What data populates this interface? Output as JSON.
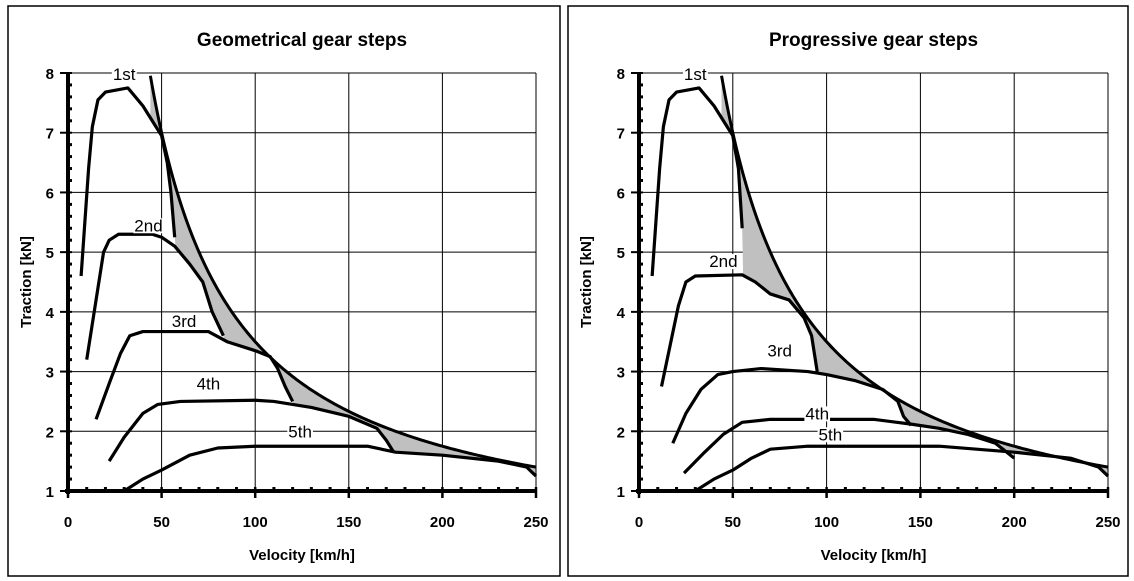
{
  "chart_data": [
    {
      "type": "line",
      "title": "Geometrical gear steps",
      "xlabel": "Velocity [km/h]",
      "ylabel": "Traction [kN]",
      "xlim": [
        0,
        250
      ],
      "ylim": [
        1,
        8
      ],
      "xticks": [
        "0",
        "50",
        "100",
        "150",
        "200",
        "250"
      ],
      "yticks": [
        "1",
        "2",
        "3",
        "4",
        "5",
        "6",
        "7",
        "8"
      ],
      "grid": true,
      "ideal_traction_curve": {
        "constant_power_product": 350,
        "x_range": [
          44,
          250
        ]
      },
      "shaded_gap_color": "#c0c0c0",
      "series": [
        {
          "name": "1st",
          "points": [
            [
              7,
              4.6
            ],
            [
              9,
              5.5
            ],
            [
              11,
              6.4
            ],
            [
              13,
              7.1
            ],
            [
              16,
              7.55
            ],
            [
              20,
              7.68
            ],
            [
              32,
              7.75
            ],
            [
              40,
              7.45
            ],
            [
              47,
              7.1
            ],
            [
              50,
              6.95
            ],
            [
              53,
              6.5
            ],
            [
              55,
              6.0
            ],
            [
              57,
              5.25
            ]
          ]
        },
        {
          "name": "2nd",
          "points": [
            [
              10,
              3.2
            ],
            [
              15,
              4.2
            ],
            [
              19,
              5.0
            ],
            [
              22,
              5.2
            ],
            [
              27,
              5.3
            ],
            [
              45,
              5.3
            ],
            [
              50,
              5.25
            ],
            [
              57,
              5.1
            ],
            [
              65,
              4.8
            ],
            [
              72,
              4.5
            ],
            [
              77,
              4.0
            ],
            [
              83,
              3.6
            ]
          ]
        },
        {
          "name": "3rd",
          "points": [
            [
              15,
              2.2
            ],
            [
              22,
              2.8
            ],
            [
              28,
              3.3
            ],
            [
              33,
              3.6
            ],
            [
              40,
              3.67
            ],
            [
              75,
              3.67
            ],
            [
              85,
              3.5
            ],
            [
              100,
              3.35
            ],
            [
              108,
              3.25
            ],
            [
              112,
              3.05
            ],
            [
              116,
              2.75
            ],
            [
              120,
              2.5
            ]
          ]
        },
        {
          "name": "4th",
          "points": [
            [
              22,
              1.5
            ],
            [
              30,
              1.9
            ],
            [
              40,
              2.3
            ],
            [
              48,
              2.45
            ],
            [
              60,
              2.5
            ],
            [
              100,
              2.52
            ],
            [
              110,
              2.5
            ],
            [
              130,
              2.4
            ],
            [
              150,
              2.25
            ],
            [
              165,
              2.05
            ],
            [
              170,
              1.85
            ],
            [
              174,
              1.65
            ]
          ]
        },
        {
          "name": "5th",
          "points": [
            [
              30,
              1.0
            ],
            [
              40,
              1.2
            ],
            [
              50,
              1.35
            ],
            [
              65,
              1.6
            ],
            [
              80,
              1.72
            ],
            [
              100,
              1.75
            ],
            [
              160,
              1.75
            ],
            [
              175,
              1.65
            ],
            [
              200,
              1.6
            ],
            [
              230,
              1.5
            ],
            [
              245,
              1.4
            ],
            [
              250,
              1.25
            ]
          ]
        }
      ]
    },
    {
      "type": "line",
      "title": "Progressive gear steps",
      "xlabel": "Velocity [km/h]",
      "ylabel": "Traction [kN]",
      "xlim": [
        0,
        250
      ],
      "ylim": [
        1,
        8
      ],
      "xticks": [
        "0",
        "50",
        "100",
        "150",
        "200",
        "250"
      ],
      "yticks": [
        "1",
        "2",
        "3",
        "4",
        "5",
        "6",
        "7",
        "8"
      ],
      "grid": true,
      "ideal_traction_curve": {
        "constant_power_product": 350,
        "x_range": [
          44,
          250
        ]
      },
      "shaded_gap_color": "#c0c0c0",
      "series": [
        {
          "name": "1st",
          "points": [
            [
              7,
              4.6
            ],
            [
              9,
              5.5
            ],
            [
              11,
              6.4
            ],
            [
              13,
              7.1
            ],
            [
              16,
              7.55
            ],
            [
              20,
              7.68
            ],
            [
              32,
              7.75
            ],
            [
              40,
              7.45
            ],
            [
              47,
              7.1
            ],
            [
              50,
              6.95
            ],
            [
              53,
              6.4
            ],
            [
              55,
              5.4
            ]
          ]
        },
        {
          "name": "2nd",
          "points": [
            [
              12,
              2.75
            ],
            [
              17,
              3.5
            ],
            [
              21,
              4.1
            ],
            [
              25,
              4.5
            ],
            [
              30,
              4.6
            ],
            [
              55,
              4.62
            ],
            [
              62,
              4.5
            ],
            [
              70,
              4.3
            ],
            [
              80,
              4.2
            ],
            [
              88,
              3.9
            ],
            [
              92,
              3.6
            ],
            [
              95,
              3.0
            ]
          ]
        },
        {
          "name": "3rd",
          "points": [
            [
              18,
              1.8
            ],
            [
              25,
              2.3
            ],
            [
              33,
              2.7
            ],
            [
              42,
              2.95
            ],
            [
              50,
              3.0
            ],
            [
              65,
              3.05
            ],
            [
              90,
              3.0
            ],
            [
              100,
              2.95
            ],
            [
              115,
              2.85
            ],
            [
              130,
              2.7
            ],
            [
              138,
              2.5
            ],
            [
              141,
              2.25
            ],
            [
              145,
              2.1
            ]
          ]
        },
        {
          "name": "4th",
          "points": [
            [
              24,
              1.3
            ],
            [
              35,
              1.65
            ],
            [
              45,
              1.95
            ],
            [
              55,
              2.15
            ],
            [
              70,
              2.2
            ],
            [
              125,
              2.2
            ],
            [
              145,
              2.12
            ],
            [
              160,
              2.05
            ],
            [
              175,
              1.95
            ],
            [
              190,
              1.8
            ],
            [
              200,
              1.55
            ]
          ]
        },
        {
          "name": "5th",
          "points": [
            [
              30,
              1.0
            ],
            [
              40,
              1.2
            ],
            [
              50,
              1.35
            ],
            [
              60,
              1.55
            ],
            [
              70,
              1.7
            ],
            [
              90,
              1.75
            ],
            [
              160,
              1.75
            ],
            [
              200,
              1.65
            ],
            [
              230,
              1.55
            ],
            [
              245,
              1.4
            ],
            [
              250,
              1.25
            ]
          ]
        }
      ]
    }
  ]
}
